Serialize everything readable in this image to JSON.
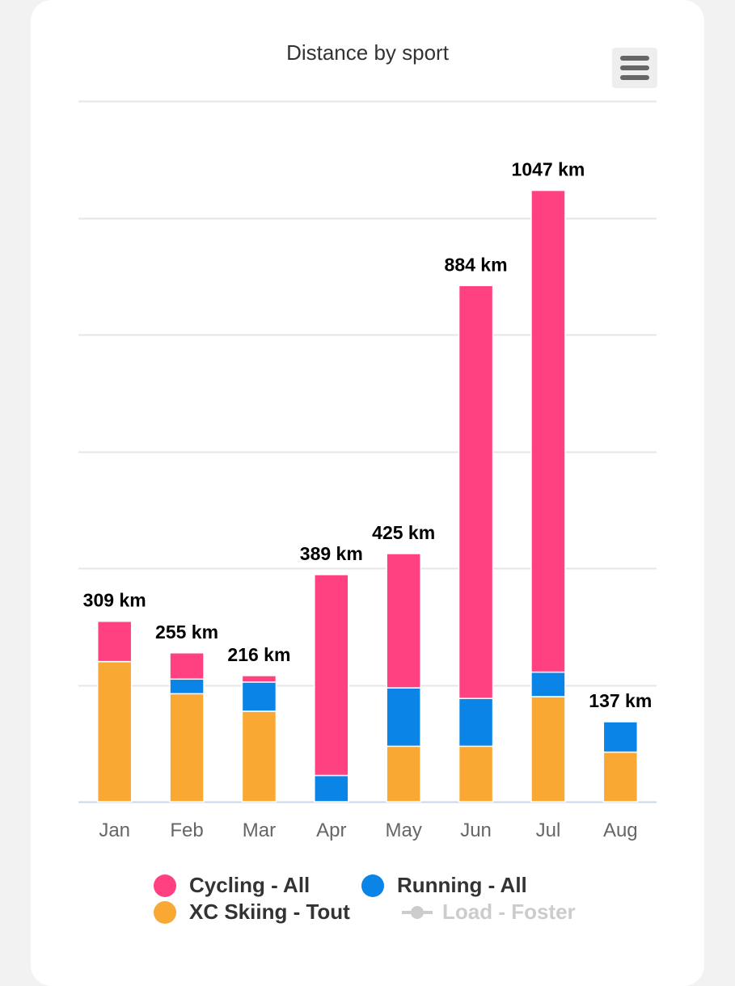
{
  "chart_data": {
    "type": "bar",
    "stacked": true,
    "title": "Distance by sport",
    "categories": [
      "Jan",
      "Feb",
      "Mar",
      "Apr",
      "May",
      "Jun",
      "Jul",
      "Aug"
    ],
    "series": [
      {
        "name": "XC Skiing - Tout",
        "color": "#faa834",
        "values": [
          240,
          185,
          155,
          0,
          95,
          95,
          180,
          85
        ]
      },
      {
        "name": "Running - All",
        "color": "#0a84e6",
        "values": [
          0,
          25,
          50,
          45,
          100,
          82,
          42,
          52
        ]
      },
      {
        "name": "Cycling - All",
        "color": "#ff4081",
        "values": [
          69,
          45,
          11,
          344,
          230,
          707,
          825,
          0
        ]
      }
    ],
    "totals": [
      309,
      255,
      216,
      389,
      425,
      884,
      1047,
      137
    ],
    "total_labels": [
      "309 km",
      "255 km",
      "216 km",
      "389 km",
      "425 km",
      "884 km",
      "1047 km",
      "137 km"
    ],
    "ylim": [
      0,
      1200
    ],
    "gridlines": [
      0,
      200,
      400,
      600,
      800,
      1000,
      1200
    ],
    "xlabel": "",
    "ylabel": ""
  },
  "legend": [
    {
      "label": "Cycling - All",
      "color": "#ff4081",
      "symbol": "dot",
      "hidden": false
    },
    {
      "label": "Running - All",
      "color": "#0a84e6",
      "symbol": "dot",
      "hidden": false
    },
    {
      "label": "XC Skiing - Tout",
      "color": "#faa834",
      "symbol": "dot",
      "hidden": false
    },
    {
      "label": "Load - Foster",
      "color": "#cccccc",
      "symbol": "line",
      "hidden": true
    }
  ],
  "menu": {
    "icon": "hamburger-menu-icon"
  }
}
